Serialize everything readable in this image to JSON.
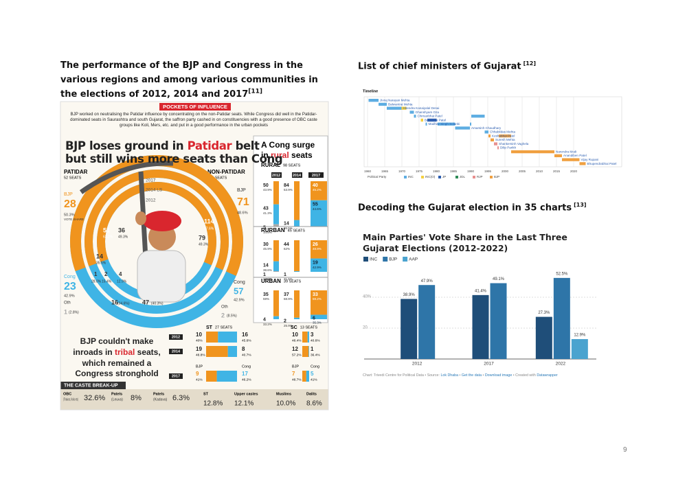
{
  "left": {
    "title": "The performance of the BJP and Congress in the various regions and among various communities in the elections of 2012, 2014 and 2017",
    "ref": "[11]",
    "infographic": {
      "banner": "POCKETS OF INFLUENCE",
      "intro": "BJP worked on neutralising the Patidar influence by concentrating on the non-Patidar seats. While Congress did well in the Patidar-dominated seats in Saurashtra and south Gujarat, the saffron party cashed in on constituencies with a good presence of OBC caste groups like Koli, Mers, etc. and put in a good performance in the urban pockets",
      "headline": [
        "BJP loses ground in ",
        "Patidar",
        " belt",
        "but still wins more seats than Cong"
      ],
      "patidar": {
        "label": "PATIDAR",
        "seats": "52 SEATS"
      },
      "non_patidar": {
        "label": "NON-PATIDAR",
        "seats": "130 SEATS"
      },
      "rings": [
        "2017",
        "2014 LS",
        "2012"
      ],
      "ring_labels": [
        "BJP",
        "28",
        "50.3%",
        "VOTE SHARE",
        "Cong",
        "23",
        "42.9%",
        "Oth",
        "1",
        "(2.8%)",
        "51",
        "63.2%",
        "36",
        "49.3%",
        "14",
        "35.5%",
        "1",
        "28.0%",
        "2",
        "15.4%",
        "4",
        "12.9%",
        "16",
        "(34.6%)",
        "47",
        "(40.3%)",
        "BJP",
        "71",
        "48.6%",
        "114",
        "57.6%",
        "79",
        "49.3%",
        "Cong",
        "57",
        "42.9%",
        "Oth",
        "2",
        "(8.5%)"
      ],
      "regional": {
        "title": [
          "A Cong surge",
          "in ",
          "rural",
          " seats"
        ],
        "years": [
          "2012",
          "2014",
          "2017"
        ],
        "panels": [
          {
            "label": "RURAL",
            "seats": "98 SEATS",
            "columns": [
              [
                {
                  "seats": 50,
                  "share": "43.9%"
                },
                {
                  "seats": 43,
                  "share": "41.3%"
                },
                {
                  "seats": 5,
                  "share": "14.8%"
                }
              ],
              [
                {
                  "seats": 84,
                  "share": "53.9%"
                },
                {
                  "seats": 14,
                  "share": "36.5%"
                }
              ],
              [
                {
                  "seats": 40,
                  "share": "45.2%"
                },
                {
                  "seats": 55,
                  "share": "44.6%"
                }
              ]
            ]
          },
          {
            "label": "RURBAN",
            "seats": "45 SEATS",
            "columns": [
              [
                {
                  "seats": 30,
                  "share": "45.9%"
                },
                {
                  "seats": 14,
                  "share": "38.6%"
                },
                {
                  "seats": 1,
                  "share": "14.3%"
                }
              ],
              [
                {
                  "seats": 44,
                  "share": "62%"
                },
                {
                  "seats": 1,
                  "share": "31.5%"
                }
              ],
              [
                {
                  "seats": 26,
                  "share": "48.9%"
                },
                {
                  "seats": 19,
                  "share": "42.9%"
                }
              ]
            ]
          },
          {
            "label": "URBAN",
            "seats": "39 SEATS",
            "columns": [
              [
                {
                  "seats": 35,
                  "share": "59%"
                },
                {
                  "seats": 4,
                  "share": "33.2%"
                }
              ],
              [
                {
                  "seats": 37,
                  "share": "68.9%"
                },
                {
                  "seats": 2,
                  "share": "25.9%"
                }
              ],
              [
                {
                  "seats": 33,
                  "share": "59.2%"
                },
                {
                  "seats": 6,
                  "share": "35.3%"
                }
              ]
            ]
          }
        ]
      },
      "tribal": {
        "headline": [
          "BJP couldn't make",
          "inroads in ",
          "tribal",
          " seats,",
          "which remained a",
          "Congress stronghold"
        ],
        "years": [
          "2012",
          "2014",
          "2017"
        ],
        "party_labels": [
          "BJP",
          "Cong"
        ],
        "groups": [
          {
            "label": "ST",
            "seats": "27 SEATS",
            "rows": [
              [
                {
                  "seats": 10,
                  "share": "40%"
                },
                {
                  "seats": 16,
                  "share": "45.6%"
                }
              ],
              [
                {
                  "seats": 19,
                  "share": "48.8%"
                },
                {
                  "seats": 8,
                  "share": "40.7%"
                }
              ],
              [
                {
                  "seats": 9,
                  "share": "41%"
                },
                {
                  "seats": 17,
                  "share": "46.2%"
                }
              ]
            ]
          },
          {
            "label": "SC",
            "seats": "13 SEATS",
            "rows": [
              [
                {
                  "seats": 10,
                  "share": "48.4%"
                },
                {
                  "seats": 3,
                  "share": "40.6%"
                }
              ],
              [
                {
                  "seats": 12,
                  "share": "57.2%"
                },
                {
                  "seats": 1,
                  "share": "36.4%"
                }
              ],
              [
                {
                  "seats": 7,
                  "share": "48.7%"
                },
                {
                  "seats": 5,
                  "share": "41%"
                }
              ]
            ]
          }
        ]
      },
      "caste": {
        "title": "THE CASTE BREAK-UP",
        "items": [
          {
            "name": "OBC",
            "note": "(Thakors, Kolis etc)",
            "share": "32.6%"
          },
          {
            "name": "Patels",
            "note": "(Leuva)",
            "share": "8%"
          },
          {
            "name": "Patels",
            "note": "(Kadava)",
            "share": "6.3%"
          },
          {
            "name": "ST",
            "note": null,
            "share": "12.8%"
          },
          {
            "name": "Upper castes",
            "note": null,
            "share": "12.1%"
          },
          {
            "name": "Muslims",
            "note": null,
            "share": "10.0%"
          },
          {
            "name": "Dalits",
            "note": null,
            "share": "8.6%"
          }
        ]
      }
    }
  },
  "timeline_section": {
    "title": "List of chief ministers of Gujarat",
    "ref": "[12]"
  },
  "chart_section": {
    "title": "Decoding the Gujarat election in 35 charts",
    "ref": "[13]"
  },
  "chart_data": [
    {
      "type": "timeline",
      "title": "Timeline",
      "xlim": [
        1959,
        2034
      ],
      "xticks": [
        1960,
        1965,
        1970,
        1975,
        1980,
        1985,
        1990,
        1995,
        2000,
        2005,
        2010,
        2015,
        2020
      ],
      "legend_title": "Political Party",
      "parties": [
        {
          "name": "INC",
          "color": "#5dade2"
        },
        {
          "name": "INC(O)",
          "color": "#f4d03f"
        },
        {
          "name": "JP",
          "color": "#2e5fb0"
        },
        {
          "name": "JDL",
          "color": "#2e8b57"
        },
        {
          "name": "RJP",
          "color": "#e8908f"
        },
        {
          "name": "BJP",
          "color": "#f0a040"
        }
      ],
      "people": [
        {
          "name": "Jivraj Narayan Mehta",
          "terms": [
            {
              "start": 1960.3,
              "end": 1963.2,
              "party": "INC"
            }
          ]
        },
        {
          "name": "Balwantrai Mehta",
          "terms": [
            {
              "start": 1963.2,
              "end": 1965.6,
              "party": "INC"
            }
          ]
        },
        {
          "name": "Hitendra Kanaiyalal Desai",
          "terms": [
            {
              "start": 1965.6,
              "end": 1969.9,
              "party": "INC"
            },
            {
              "start": 1969.9,
              "end": 1971.3,
              "party": "INC(O)"
            }
          ]
        },
        {
          "name": "Ghanshyam Oza",
          "terms": [
            {
              "start": 1972.3,
              "end": 1973.5,
              "party": "INC"
            }
          ]
        },
        {
          "name": "Chimanbhai Patel",
          "terms": [
            {
              "start": 1973.5,
              "end": 1974.1,
              "party": "INC"
            },
            {
              "start": 1990.2,
              "end": 1994.1,
              "party": "INC"
            }
          ]
        },
        {
          "name": "Babubhai Patel",
          "terms": [
            {
              "start": 1975.5,
              "end": 1976.2,
              "party": "INC(O)"
            },
            {
              "start": 1977.4,
              "end": 1980.1,
              "party": "JP"
            }
          ]
        },
        {
          "name": "Madhav Singh Solanki",
          "terms": [
            {
              "start": 1976.9,
              "end": 1977.3,
              "party": "INC"
            },
            {
              "start": 1980.4,
              "end": 1985.5,
              "party": "INC"
            },
            {
              "start": 1989.8,
              "end": 1990.2,
              "party": "INC"
            }
          ]
        },
        {
          "name": "Amarsinh Chaudhary",
          "terms": [
            {
              "start": 1985.5,
              "end": 1989.8,
              "party": "INC"
            }
          ]
        },
        {
          "name": "Chhabildas Mehta",
          "terms": [
            {
              "start": 1994.1,
              "end": 1995.2,
              "party": "INC"
            }
          ]
        },
        {
          "name": "Keshubhai Patel",
          "terms": [
            {
              "start": 1995.2,
              "end": 1995.8,
              "party": "BJP"
            },
            {
              "start": 1998.2,
              "end": 2001.8,
              "party": "BJP"
            }
          ]
        },
        {
          "name": "Suresh Mehta",
          "terms": [
            {
              "start": 1995.8,
              "end": 1996.8,
              "party": "BJP"
            }
          ]
        },
        {
          "name": "Shankersinh Vaghela",
          "terms": [
            {
              "start": 1996.8,
              "end": 1997.8,
              "party": "RJP"
            }
          ]
        },
        {
          "name": "Dilip Parikh",
          "terms": [
            {
              "start": 1997.8,
              "end": 1998.2,
              "party": "RJP"
            }
          ]
        },
        {
          "name": "Narendra Modi",
          "terms": [
            {
              "start": 2001.8,
              "end": 2014.4,
              "party": "BJP"
            }
          ]
        },
        {
          "name": "Anandiben Patel",
          "terms": [
            {
              "start": 2014.4,
              "end": 2016.6,
              "party": "BJP"
            }
          ]
        },
        {
          "name": "Vijay Rupani",
          "terms": [
            {
              "start": 2016.6,
              "end": 2021.7,
              "party": "BJP"
            }
          ]
        },
        {
          "name": "Bhupendrabhai Patel",
          "terms": [
            {
              "start": 2021.7,
              "end": 2023.5,
              "party": "BJP"
            }
          ]
        }
      ]
    },
    {
      "type": "bar",
      "title": "Main Parties' Vote Share in the Last Three Gujarat Elections (2012-2022)",
      "categories": [
        "2012",
        "2017",
        "2022"
      ],
      "series": [
        {
          "name": "INC",
          "color": "#1f4e79",
          "values": [
            38.9,
            41.4,
            27.3
          ],
          "value_labels": [
            "38.9%",
            "41.4%",
            "27.3%"
          ]
        },
        {
          "name": "BJP",
          "color": "#2e75a8",
          "values": [
            47.9,
            49.1,
            52.5
          ],
          "value_labels": [
            "47.9%",
            "49.1%",
            "52.5%"
          ]
        },
        {
          "name": "AAP",
          "color": "#4aa3cf",
          "values": [
            null,
            null,
            12.9
          ],
          "value_labels": [
            null,
            null,
            "12.9%"
          ]
        }
      ],
      "ylim": [
        0,
        60
      ],
      "yticks": [
        20,
        {
          "value": 40,
          "label": "40%"
        }
      ],
      "grid": true,
      "source": [
        "Chart: Trivedi Centre for Political Data • Source: ",
        "Lok Dhaba",
        " • ",
        "Get the data",
        " • ",
        "Download image",
        " • Created with ",
        "Datawrapper"
      ]
    }
  ],
  "page_number": "9"
}
